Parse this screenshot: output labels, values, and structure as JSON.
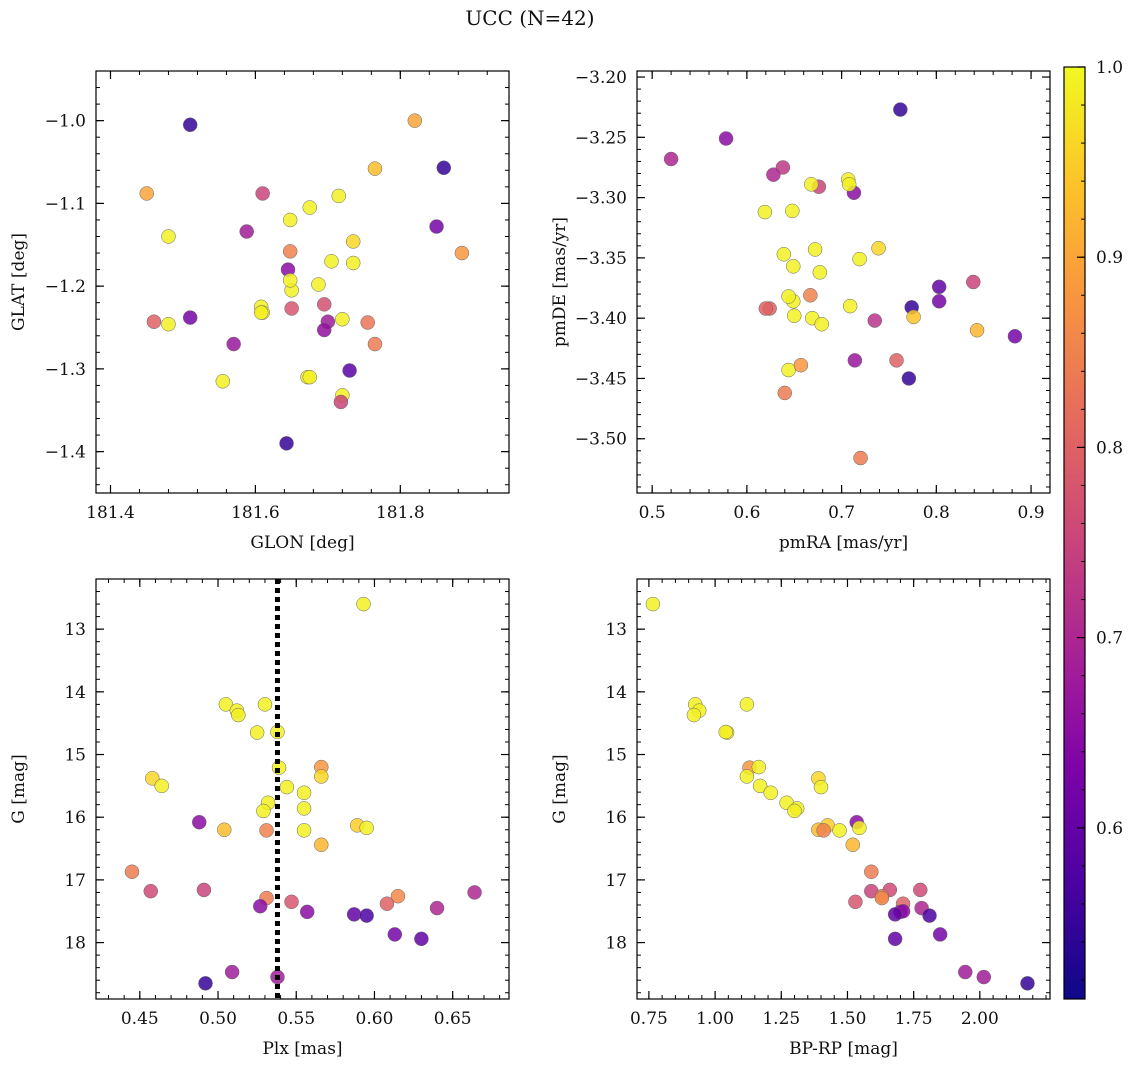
{
  "figure": {
    "title": "UCC (N=42)"
  },
  "colorbar": {
    "colormap": "plasma",
    "range": [
      0.51,
      1.0
    ],
    "ticks": [
      0.6,
      0.7,
      0.8,
      0.9,
      1.0
    ],
    "tick_labels": [
      "0.6",
      "0.7",
      "0.8",
      "0.9",
      "1.0"
    ]
  },
  "chart_data": [
    {
      "type": "scatter",
      "panel": "top-left",
      "xlabel": "GLON [deg]",
      "ylabel": "GLAT [deg]",
      "xlim": [
        181.38,
        181.95
      ],
      "ylim": [
        -1.45,
        -0.94
      ],
      "xticks": [
        181.4,
        181.6,
        181.8
      ],
      "xtick_labels": [
        "181.4",
        "181.6",
        "181.8"
      ],
      "yticks": [
        -1.0,
        -1.1,
        -1.2,
        -1.3,
        -1.4
      ],
      "ytick_labels": [
        "−1.0",
        "−1.1",
        "−1.2",
        "−1.3",
        "−1.4"
      ],
      "x": [
        181.51,
        181.86,
        181.82,
        181.45,
        181.61,
        181.765,
        181.715,
        181.48,
        181.588,
        181.648,
        181.675,
        181.85,
        181.885,
        181.735,
        181.648,
        181.705,
        181.735,
        181.645,
        181.687,
        181.65,
        181.46,
        181.51,
        181.48,
        181.608,
        181.61,
        181.65,
        181.695,
        181.72,
        181.755,
        181.7,
        181.695,
        181.765,
        181.57,
        181.73,
        181.555,
        181.672,
        181.675,
        181.72,
        181.718,
        181.643,
        181.648,
        181.608
      ],
      "y": [
        -1.005,
        -1.057,
        -1.0,
        -1.088,
        -1.088,
        -1.058,
        -1.091,
        -1.14,
        -1.134,
        -1.12,
        -1.105,
        -1.128,
        -1.16,
        -1.146,
        -1.158,
        -1.17,
        -1.172,
        -1.18,
        -1.198,
        -1.205,
        -1.243,
        -1.238,
        -1.246,
        -1.225,
        -1.232,
        -1.227,
        -1.222,
        -1.24,
        -1.244,
        -1.243,
        -1.253,
        -1.27,
        -1.27,
        -1.302,
        -1.315,
        -1.31,
        -1.31,
        -1.332,
        -1.34,
        -1.39,
        -1.193,
        -1.232
      ],
      "c": [
        0.55,
        0.55,
        0.9,
        0.9,
        0.75,
        0.93,
        0.99,
        0.99,
        0.68,
        0.99,
        0.99,
        0.62,
        0.88,
        0.96,
        0.85,
        0.99,
        0.99,
        0.65,
        0.99,
        0.99,
        0.8,
        0.62,
        0.99,
        0.99,
        0.99,
        0.78,
        0.77,
        0.99,
        0.83,
        0.68,
        0.66,
        0.84,
        0.67,
        0.59,
        0.99,
        0.99,
        0.99,
        0.99,
        0.75,
        0.55,
        0.99,
        0.99
      ]
    },
    {
      "type": "scatter",
      "panel": "top-right",
      "xlabel": "pmRA [mas/yr]",
      "ylabel": "pmDE [mas/yr]",
      "xlim": [
        0.484,
        0.92
      ],
      "ylim": [
        -3.545,
        -3.195
      ],
      "xticks": [
        0.5,
        0.6,
        0.7,
        0.8,
        0.9
      ],
      "xtick_labels": [
        "0.5",
        "0.6",
        "0.7",
        "0.8",
        "0.9"
      ],
      "yticks": [
        -3.2,
        -3.25,
        -3.3,
        -3.35,
        -3.4,
        -3.45,
        -3.5
      ],
      "ytick_labels": [
        "−3.20",
        "−3.25",
        "−3.30",
        "−3.35",
        "−3.40",
        "−3.45",
        "−3.50"
      ],
      "x": [
        0.762,
        0.578,
        0.52,
        0.638,
        0.628,
        0.707,
        0.676,
        0.668,
        0.713,
        0.708,
        0.619,
        0.648,
        0.639,
        0.672,
        0.739,
        0.649,
        0.719,
        0.677,
        0.649,
        0.624,
        0.774,
        0.803,
        0.839,
        0.803,
        0.644,
        0.667,
        0.65,
        0.669,
        0.679,
        0.735,
        0.771,
        0.776,
        0.709,
        0.843,
        0.883,
        0.62,
        0.644,
        0.714,
        0.758,
        0.657,
        0.64,
        0.72
      ],
      "y": [
        -3.227,
        -3.251,
        -3.268,
        -3.275,
        -3.281,
        -3.285,
        -3.291,
        -3.289,
        -3.296,
        -3.289,
        -3.312,
        -3.311,
        -3.347,
        -3.343,
        -3.342,
        -3.357,
        -3.351,
        -3.362,
        -3.386,
        -3.392,
        -3.391,
        -3.374,
        -3.37,
        -3.386,
        -3.382,
        -3.381,
        -3.398,
        -3.4,
        -3.405,
        -3.402,
        -3.45,
        -3.399,
        -3.39,
        -3.41,
        -3.415,
        -3.392,
        -3.443,
        -3.435,
        -3.435,
        -3.439,
        -3.462,
        -3.516
      ],
      "c": [
        0.55,
        0.65,
        0.7,
        0.73,
        0.7,
        0.99,
        0.75,
        0.99,
        0.65,
        0.99,
        0.99,
        0.99,
        0.99,
        0.99,
        0.96,
        0.99,
        0.99,
        0.99,
        0.99,
        0.8,
        0.55,
        0.6,
        0.75,
        0.62,
        0.99,
        0.85,
        0.99,
        0.99,
        0.99,
        0.72,
        0.55,
        0.94,
        0.99,
        0.92,
        0.62,
        0.8,
        0.99,
        0.67,
        0.8,
        0.88,
        0.84,
        0.84
      ]
    },
    {
      "type": "scatter",
      "panel": "bottom-left",
      "xlabel": "Plx [mas]",
      "ylabel": "G [mag]",
      "xlim": [
        0.422,
        0.686
      ],
      "ylim": [
        18.9,
        12.2
      ],
      "y_inverted": true,
      "vline": {
        "x": 0.538,
        "style": "dotted",
        "color": "#000000"
      },
      "xticks": [
        0.45,
        0.5,
        0.55,
        0.6,
        0.65
      ],
      "xtick_labels": [
        "0.45",
        "0.50",
        "0.55",
        "0.60",
        "0.65"
      ],
      "yticks": [
        13,
        14,
        15,
        16,
        17,
        18
      ],
      "ytick_labels": [
        "13",
        "14",
        "15",
        "16",
        "17",
        "18"
      ],
      "x": [
        0.593,
        0.505,
        0.512,
        0.53,
        0.513,
        0.525,
        0.538,
        0.566,
        0.566,
        0.539,
        0.458,
        0.464,
        0.544,
        0.555,
        0.532,
        0.555,
        0.529,
        0.488,
        0.504,
        0.531,
        0.589,
        0.595,
        0.555,
        0.566,
        0.445,
        0.457,
        0.491,
        0.531,
        0.547,
        0.527,
        0.557,
        0.587,
        0.595,
        0.615,
        0.608,
        0.613,
        0.63,
        0.64,
        0.664,
        0.492,
        0.509,
        0.538
      ],
      "y": [
        12.6,
        14.2,
        14.3,
        14.2,
        14.37,
        14.65,
        14.64,
        15.2,
        15.35,
        15.21,
        15.38,
        15.5,
        15.52,
        15.61,
        15.77,
        15.86,
        15.9,
        16.08,
        16.2,
        16.21,
        16.13,
        16.17,
        16.21,
        16.44,
        16.87,
        17.18,
        17.16,
        17.29,
        17.35,
        17.42,
        17.51,
        17.55,
        17.57,
        17.26,
        17.38,
        17.87,
        17.94,
        17.45,
        17.2,
        18.65,
        18.47,
        18.55
      ],
      "c": [
        0.99,
        0.99,
        0.99,
        0.99,
        0.99,
        0.99,
        0.99,
        0.88,
        0.96,
        0.99,
        0.96,
        0.99,
        0.99,
        0.99,
        0.99,
        0.99,
        0.99,
        0.65,
        0.93,
        0.85,
        0.95,
        0.99,
        0.99,
        0.92,
        0.84,
        0.76,
        0.75,
        0.84,
        0.78,
        0.65,
        0.65,
        0.6,
        0.57,
        0.86,
        0.8,
        0.62,
        0.6,
        0.7,
        0.7,
        0.55,
        0.68,
        0.68
      ]
    },
    {
      "type": "scatter",
      "panel": "bottom-right",
      "xlabel": "BP-RP [mag]",
      "ylabel": "G [mag]",
      "xlim": [
        0.705,
        2.265
      ],
      "ylim": [
        18.9,
        12.2
      ],
      "y_inverted": true,
      "xticks": [
        0.75,
        1.0,
        1.25,
        1.5,
        1.75,
        2.0
      ],
      "xtick_labels": [
        "0.75",
        "1.00",
        "1.25",
        "1.50",
        "1.75",
        "2.00"
      ],
      "yticks": [
        13,
        14,
        15,
        16,
        17,
        18
      ],
      "ytick_labels": [
        "13",
        "14",
        "15",
        "16",
        "17",
        "18"
      ],
      "x": [
        0.765,
        0.925,
        0.94,
        0.92,
        1.12,
        1.045,
        1.04,
        1.13,
        1.165,
        1.12,
        1.39,
        1.4,
        1.17,
        1.21,
        1.27,
        1.31,
        1.3,
        1.535,
        1.425,
        1.39,
        1.47,
        1.545,
        1.52,
        1.59,
        1.41,
        1.59,
        1.66,
        1.775,
        1.63,
        1.71,
        1.53,
        1.63,
        1.7,
        1.71,
        1.78,
        1.68,
        1.81,
        1.85,
        1.68,
        1.945,
        2.015,
        2.18
      ],
      "y": [
        12.6,
        14.2,
        14.3,
        14.37,
        14.2,
        14.65,
        14.64,
        15.21,
        15.2,
        15.35,
        15.38,
        15.52,
        15.5,
        15.61,
        15.77,
        15.86,
        15.9,
        16.08,
        16.13,
        16.2,
        16.21,
        16.17,
        16.44,
        16.87,
        16.21,
        17.18,
        17.16,
        17.16,
        17.26,
        17.38,
        17.35,
        17.29,
        17.51,
        17.5,
        17.45,
        17.55,
        17.57,
        17.87,
        17.94,
        18.47,
        18.55,
        18.65
      ],
      "c": [
        0.99,
        0.99,
        0.99,
        0.99,
        0.99,
        0.99,
        0.99,
        0.88,
        0.99,
        0.99,
        0.96,
        0.99,
        0.99,
        0.99,
        0.99,
        0.99,
        0.99,
        0.65,
        0.95,
        0.93,
        0.99,
        0.99,
        0.92,
        0.84,
        0.85,
        0.75,
        0.76,
        0.76,
        0.84,
        0.8,
        0.78,
        0.86,
        0.65,
        0.65,
        0.7,
        0.6,
        0.57,
        0.62,
        0.6,
        0.68,
        0.68,
        0.55
      ]
    }
  ]
}
